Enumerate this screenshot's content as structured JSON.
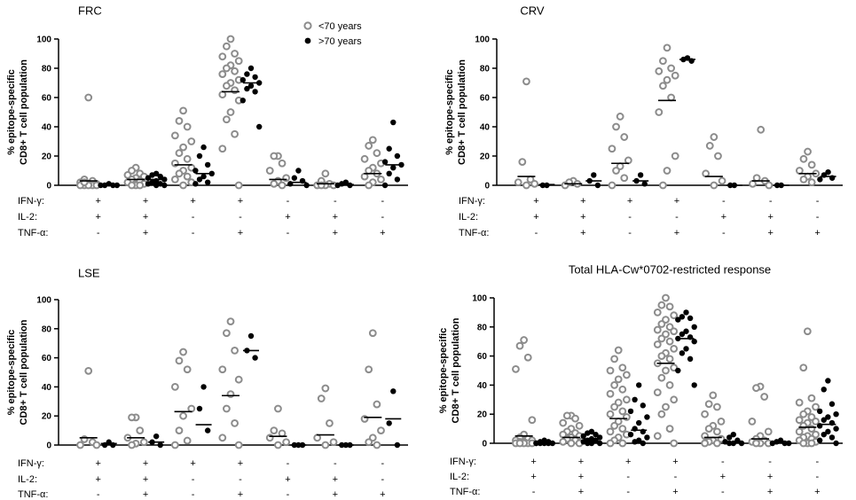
{
  "chart_data": [
    {
      "type": "scatter",
      "title": "FRC",
      "ylabel_line1": "% epitope-specific",
      "ylabel_line2": "CD8+ T cell population",
      "ylim": [
        0,
        100
      ],
      "yticks": [
        0,
        20,
        40,
        60,
        80,
        100
      ],
      "row_labels": [
        "IFN-γ:",
        "IL-2:",
        "TNF-α:"
      ],
      "groups": [
        {
          "signs": [
            "+",
            "+",
            "-"
          ],
          "young": {
            "points": [
              60,
              4,
              3,
              2,
              1,
              1,
              0,
              0,
              0,
              0,
              0,
              2
            ],
            "median": 3
          },
          "old": {
            "points": [
              1,
              0,
              0,
              0,
              0
            ],
            "median": 0.5
          }
        },
        {
          "signs": [
            "+",
            "+",
            "+"
          ],
          "young": {
            "points": [
              12,
              10,
              8,
              7,
              6,
              5,
              4,
              3,
              2,
              1,
              0,
              0,
              0
            ],
            "median": 4
          },
          "old": {
            "points": [
              8,
              7,
              6,
              5,
              4,
              3,
              2,
              1,
              1,
              0,
              0
            ],
            "median": 4
          }
        },
        {
          "signs": [
            "+",
            "-",
            "-"
          ],
          "young": {
            "points": [
              51,
              44,
              40,
              34,
              30,
              26,
              22,
              18,
              15,
              12,
              10,
              8,
              6,
              4,
              2,
              0
            ],
            "median": 14
          },
          "old": {
            "points": [
              26,
              20,
              14,
              10,
              8,
              6,
              4,
              2,
              1
            ],
            "median": 8
          }
        },
        {
          "signs": [
            "+",
            "-",
            "+"
          ],
          "young": {
            "points": [
              100,
              95,
              90,
              88,
              85,
              82,
              80,
              78,
              76,
              72,
              70,
              68,
              65,
              62,
              58,
              50,
              45,
              35,
              25,
              0
            ],
            "median": 64
          },
          "old": {
            "points": [
              80,
              76,
              74,
              72,
              70,
              68,
              66,
              64,
              58,
              40
            ],
            "median": 70
          }
        },
        {
          "signs": [
            "-",
            "+",
            "-"
          ],
          "young": {
            "points": [
              20,
              20,
              15,
              10,
              5,
              3,
              1,
              0
            ],
            "median": 4
          },
          "old": {
            "points": [
              10,
              5,
              3,
              1,
              0
            ],
            "median": 2
          }
        },
        {
          "signs": [
            "-",
            "+",
            "+"
          ],
          "young": {
            "points": [
              8,
              3,
              1,
              0,
              0,
              0,
              0
            ],
            "median": 1
          },
          "old": {
            "points": [
              2,
              1,
              0,
              0
            ],
            "median": 0.5
          }
        },
        {
          "signs": [
            "-",
            "-",
            "+"
          ],
          "young": {
            "points": [
              31,
              27,
              22,
              18,
              15,
              12,
              10,
              8,
              6,
              4,
              2,
              0
            ],
            "median": 8
          },
          "old": {
            "points": [
              43,
              25,
              20,
              16,
              14,
              12,
              8,
              4,
              0
            ],
            "median": 14
          }
        }
      ],
      "legend": [
        {
          "label": "<70 years",
          "marker": "open-grey-circle"
        },
        {
          "label": ">70 years",
          "marker": "filled-black-circle"
        }
      ]
    },
    {
      "type": "scatter",
      "title": "CRV",
      "ylabel_line1": "% epitope-specific",
      "ylabel_line2": "CD8+ T cell population",
      "ylim": [
        0,
        100
      ],
      "yticks": [
        0,
        20,
        40,
        60,
        80,
        100
      ],
      "row_labels": [
        "IFN-γ:",
        "IL-2:",
        "TNF-α:"
      ],
      "groups": [
        {
          "signs": [
            "+",
            "+",
            "-"
          ],
          "young": {
            "points": [
              71,
              16,
              4,
              2,
              1,
              0
            ],
            "median": 6
          },
          "old": {
            "points": [
              0,
              0
            ],
            "median": 0.5
          }
        },
        {
          "signs": [
            "+",
            "+",
            "+"
          ],
          "young": {
            "points": [
              3,
              2,
              1,
              0
            ],
            "median": 1
          },
          "old": {
            "points": [
              7,
              3,
              0
            ],
            "median": 3
          }
        },
        {
          "signs": [
            "+",
            "-",
            "-"
          ],
          "young": {
            "points": [
              47,
              40,
              33,
              25,
              17,
              13,
              10,
              5,
              0
            ],
            "median": 15
          },
          "old": {
            "points": [
              7,
              3,
              1
            ],
            "median": 3
          }
        },
        {
          "signs": [
            "+",
            "-",
            "+"
          ],
          "young": {
            "points": [
              94,
              85,
              80,
              78,
              75,
              72,
              68,
              60,
              50,
              20,
              10,
              0
            ],
            "median": 58
          },
          "old": {
            "points": [
              87,
              86,
              85
            ],
            "median": 86
          }
        },
        {
          "signs": [
            "-",
            "+",
            "-"
          ],
          "young": {
            "points": [
              33,
              27,
              20,
              8,
              3,
              0
            ],
            "median": 6
          },
          "old": {
            "points": [
              0,
              0
            ],
            "median": 0
          }
        },
        {
          "signs": [
            "-",
            "+",
            "+"
          ],
          "young": {
            "points": [
              38,
              5,
              3,
              1,
              0
            ],
            "median": 3
          },
          "old": {
            "points": [
              0,
              0
            ],
            "median": 0
          }
        },
        {
          "signs": [
            "-",
            "-",
            "+"
          ],
          "young": {
            "points": [
              23,
              18,
              14,
              10,
              8,
              6,
              4,
              2
            ],
            "median": 8
          },
          "old": {
            "points": [
              9,
              7,
              5,
              4
            ],
            "median": 6
          }
        }
      ]
    },
    {
      "type": "scatter",
      "title": "LSE",
      "ylabel_line1": "% epitope-specific",
      "ylabel_line2": "CD8+ T cell population",
      "ylim": [
        0,
        100
      ],
      "yticks": [
        0,
        20,
        40,
        60,
        80,
        100
      ],
      "row_labels": [
        "IFN-γ:",
        "IL-2:",
        "TNF-α:"
      ],
      "groups": [
        {
          "signs": [
            "+",
            "+",
            "-"
          ],
          "young": {
            "points": [
              51,
              4,
              2,
              0,
              0
            ],
            "median": 5
          },
          "old": {
            "points": [
              2,
              0,
              0
            ],
            "median": 1
          }
        },
        {
          "signs": [
            "+",
            "+",
            "+"
          ],
          "young": {
            "points": [
              19,
              19,
              10,
              5,
              2,
              1,
              0
            ],
            "median": 5
          },
          "old": {
            "points": [
              6,
              2,
              0
            ],
            "median": 2
          }
        },
        {
          "signs": [
            "+",
            "-",
            "-"
          ],
          "young": {
            "points": [
              64,
              58,
              52,
              40,
              25,
              20,
              10,
              3,
              0
            ],
            "median": 23
          },
          "old": {
            "points": [
              40,
              25,
              10
            ],
            "median": 14
          }
        },
        {
          "signs": [
            "+",
            "-",
            "+"
          ],
          "young": {
            "points": [
              85,
              77,
              65,
              52,
              45,
              35,
              25,
              15,
              5,
              0
            ],
            "median": 34
          },
          "old": {
            "points": [
              75,
              65,
              60
            ],
            "median": 65
          }
        },
        {
          "signs": [
            "-",
            "+",
            "-"
          ],
          "young": {
            "points": [
              25,
              10,
              8,
              5,
              2,
              0
            ],
            "median": 6
          },
          "old": {
            "points": [
              0,
              0,
              0
            ],
            "median": 0
          }
        },
        {
          "signs": [
            "-",
            "+",
            "+"
          ],
          "young": {
            "points": [
              39,
              32,
              15,
              5,
              2,
              0
            ],
            "median": 7
          },
          "old": {
            "points": [
              0,
              0,
              0
            ],
            "median": 0
          }
        },
        {
          "signs": [
            "-",
            "-",
            "+"
          ],
          "young": {
            "points": [
              77,
              52,
              28,
              18,
              10,
              5,
              2,
              0
            ],
            "median": 19
          },
          "old": {
            "points": [
              37,
              15,
              0
            ],
            "median": 18
          }
        }
      ]
    },
    {
      "type": "scatter",
      "title": "Total HLA-Cw*0702-restricted response",
      "ylabel_line1": "% epitope-specific",
      "ylabel_line2": "CD8+ T cell population",
      "ylim": [
        0,
        100
      ],
      "yticks": [
        0,
        20,
        40,
        60,
        80,
        100
      ],
      "row_labels": [
        "IFN-γ:",
        "IL-2:",
        "TNF-α:"
      ],
      "groups": [
        {
          "signs": [
            "+",
            "+",
            "-"
          ],
          "young": {
            "points": [
              71,
              67,
              59,
              51,
              16,
              6,
              4,
              3,
              2,
              2,
              1,
              1,
              0,
              0,
              0,
              0,
              0
            ],
            "median": 5
          },
          "old": {
            "points": [
              2,
              1,
              1,
              0,
              0,
              0,
              0,
              0,
              0
            ],
            "median": 1
          }
        },
        {
          "signs": [
            "+",
            "+",
            "+"
          ],
          "young": {
            "points": [
              19,
              19,
              17,
              14,
              12,
              10,
              8,
              7,
              6,
              5,
              4,
              3,
              2,
              1,
              0,
              0
            ],
            "median": 4
          },
          "old": {
            "points": [
              8,
              7,
              6,
              5,
              4,
              3,
              2,
              2,
              1,
              0,
              0,
              0
            ],
            "median": 3
          }
        },
        {
          "signs": [
            "+",
            "-",
            "-"
          ],
          "young": {
            "points": [
              64,
              58,
              52,
              50,
              47,
              44,
              40,
              37,
              34,
              30,
              28,
              25,
              22,
              20,
              18,
              15,
              12,
              10,
              8,
              6,
              4,
              2,
              0,
              0
            ],
            "median": 17
          },
          "old": {
            "points": [
              40,
              30,
              26,
              22,
              18,
              14,
              10,
              8,
              6,
              4,
              2,
              1,
              0
            ],
            "median": 9
          }
        },
        {
          "signs": [
            "+",
            "-",
            "+"
          ],
          "young": {
            "points": [
              100,
              95,
              94,
              90,
              88,
              85,
              82,
              80,
              78,
              77,
              75,
              72,
              70,
              68,
              65,
              62,
              60,
              58,
              55,
              52,
              50,
              45,
              40,
              35,
              30,
              25,
              20,
              10,
              5,
              0
            ],
            "median": 55
          },
          "old": {
            "points": [
              90,
              87,
              86,
              85,
              80,
              77,
              75,
              73,
              72,
              70,
              65,
              62,
              58,
              50,
              40
            ],
            "median": 72
          }
        },
        {
          "signs": [
            "-",
            "+",
            "-"
          ],
          "young": {
            "points": [
              33,
              27,
              25,
              20,
              15,
              12,
              10,
              8,
              5,
              3,
              2,
              1,
              0,
              0
            ],
            "median": 4
          },
          "old": {
            "points": [
              6,
              4,
              2,
              1,
              0,
              0,
              0
            ],
            "median": 1
          }
        },
        {
          "signs": [
            "-",
            "+",
            "+"
          ],
          "young": {
            "points": [
              39,
              38,
              32,
              15,
              8,
              5,
              3,
              2,
              1,
              0,
              0,
              0
            ],
            "median": 3
          },
          "old": {
            "points": [
              2,
              1,
              0,
              0,
              0
            ],
            "median": 1
          }
        },
        {
          "signs": [
            "-",
            "-",
            "+"
          ],
          "young": {
            "points": [
              77,
              52,
              31,
              28,
              25,
              22,
              20,
              18,
              16,
              15,
              14,
              12,
              10,
              8,
              6,
              5,
              4,
              3,
              2,
              1,
              0,
              0,
              0
            ],
            "median": 11
          },
          "old": {
            "points": [
              43,
              37,
              27,
              22,
              20,
              18,
              16,
              14,
              12,
              10,
              8,
              6,
              4,
              2,
              0
            ],
            "median": 13
          }
        }
      ]
    }
  ]
}
